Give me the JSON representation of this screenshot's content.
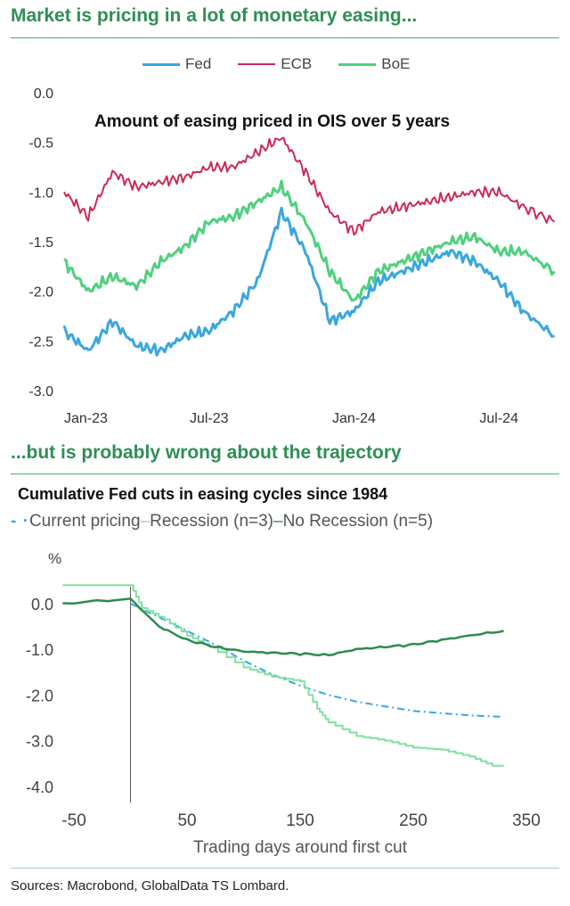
{
  "headings": {
    "top": "Market is pricing in a lot of monetary easing...",
    "bottom": "...but is probably wrong about the trajectory"
  },
  "source": "Sources: Macrobond, GlobalData TS Lombard.",
  "colors": {
    "fed": "#3aa6e0",
    "ecb": "#cc2a55",
    "boe": "#4fd07e",
    "current": "#3aa6e0",
    "recession": "#7fe0a0",
    "no_recession": "#2e8b4e",
    "heading": "#2f8f55"
  },
  "chart_data": [
    {
      "type": "line",
      "title": "Amount of easing priced in OIS over 5 years",
      "legend": [
        "Fed",
        "ECB",
        "BoE"
      ],
      "x_tick_labels": [
        "Jan-23",
        "Jul-23",
        "Jan-24",
        "Jul-24"
      ],
      "x_tick_months": [
        0,
        6,
        12,
        18
      ],
      "x_range_months": [
        0,
        20.5
      ],
      "y_ticks": [
        0.0,
        -0.5,
        -1.0,
        -1.5,
        -2.0,
        -2.5,
        -3.0
      ],
      "y_tick_labels": [
        "0.0",
        "-0.5",
        "-1.0",
        "-1.5",
        "-2.0",
        "-2.5",
        "-3.0"
      ],
      "ylim": [
        -3.0,
        0.0
      ],
      "series": [
        {
          "name": "Fed",
          "x": [
            0,
            1,
            2,
            3,
            4,
            5,
            6,
            7,
            8,
            9,
            10,
            11,
            12,
            13,
            14,
            15,
            16,
            17,
            18,
            19,
            20.3
          ],
          "y": [
            -2.4,
            -2.6,
            -2.3,
            -2.55,
            -2.6,
            -2.45,
            -2.4,
            -2.2,
            -1.9,
            -1.2,
            -1.6,
            -2.3,
            -2.2,
            -1.9,
            -1.8,
            -1.7,
            -1.6,
            -1.7,
            -1.9,
            -2.2,
            -2.45
          ]
        },
        {
          "name": "ECB",
          "x": [
            0,
            1,
            2,
            3,
            4,
            5,
            6,
            7,
            8,
            9,
            10,
            11,
            12,
            13,
            14,
            15,
            16,
            17,
            18,
            19,
            20.3
          ],
          "y": [
            -1.0,
            -1.25,
            -0.8,
            -0.95,
            -0.9,
            -0.85,
            -0.75,
            -0.75,
            -0.6,
            -0.45,
            -0.8,
            -1.2,
            -1.4,
            -1.2,
            -1.15,
            -1.1,
            -1.05,
            -1.0,
            -1.0,
            -1.15,
            -1.3
          ]
        },
        {
          "name": "BoE",
          "x": [
            0,
            1,
            2,
            3,
            4,
            5,
            6,
            7,
            8,
            9,
            10,
            11,
            12,
            13,
            14,
            15,
            16,
            17,
            18,
            19,
            20.3
          ],
          "y": [
            -1.7,
            -2.0,
            -1.85,
            -1.95,
            -1.7,
            -1.55,
            -1.3,
            -1.25,
            -1.1,
            -0.95,
            -1.3,
            -1.8,
            -2.1,
            -1.8,
            -1.7,
            -1.6,
            -1.5,
            -1.45,
            -1.6,
            -1.6,
            -1.8
          ]
        }
      ]
    },
    {
      "type": "line",
      "title": "Cumulative Fed cuts in easing cycles since 1984",
      "legend": [
        "Current pricing",
        "Recession (n=3)",
        "No Recession (n=5)"
      ],
      "xlabel": "Trading days around first cut",
      "ylabel": "%",
      "x_ticks": [
        -50,
        50,
        150,
        250,
        350
      ],
      "x_tick_labels": [
        "-50",
        "50",
        "150",
        "250",
        "350"
      ],
      "xlim": [
        -65,
        365
      ],
      "y_ticks": [
        0,
        -1,
        -2,
        -3,
        -4
      ],
      "y_tick_labels": [
        "0.0",
        "-1.0",
        "-2.0",
        "-3.0",
        "-4.0"
      ],
      "ylim": [
        -4.2,
        0.6
      ],
      "vline_x": 0,
      "series": [
        {
          "name": "Current pricing",
          "style": "dash-dot",
          "x": [
            0,
            25,
            50,
            75,
            100,
            125,
            150,
            175,
            200,
            225,
            250,
            275,
            300,
            330
          ],
          "y": [
            0.0,
            -0.3,
            -0.6,
            -0.9,
            -1.25,
            -1.55,
            -1.8,
            -2.0,
            -2.15,
            -2.25,
            -2.35,
            -2.4,
            -2.45,
            -2.48
          ]
        },
        {
          "name": "Recession (n=3)",
          "x": [
            -60,
            0,
            10,
            30,
            50,
            70,
            100,
            125,
            150,
            165,
            175,
            200,
            225,
            250,
            275,
            300,
            320,
            330
          ],
          "y": [
            0.4,
            0.4,
            -0.1,
            -0.35,
            -0.7,
            -0.95,
            -1.4,
            -1.6,
            -1.7,
            -2.3,
            -2.6,
            -2.9,
            -3.0,
            -3.15,
            -3.2,
            -3.35,
            -3.55,
            -3.55
          ]
        },
        {
          "name": "No Recession (n=5)",
          "x": [
            -60,
            0,
            25,
            50,
            75,
            100,
            125,
            150,
            175,
            200,
            225,
            250,
            275,
            300,
            330
          ],
          "y": [
            0.0,
            0.1,
            -0.5,
            -0.8,
            -0.95,
            -1.05,
            -1.08,
            -1.1,
            -1.13,
            -1.0,
            -0.95,
            -0.9,
            -0.8,
            -0.7,
            -0.6
          ]
        }
      ]
    }
  ]
}
